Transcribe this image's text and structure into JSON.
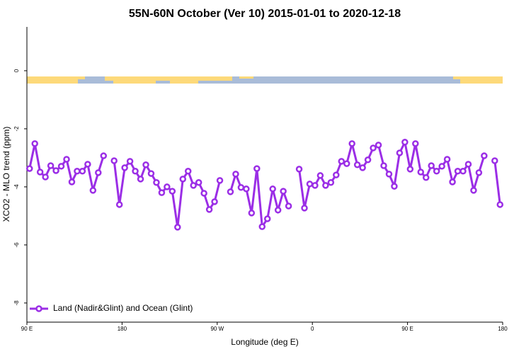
{
  "chart_data": {
    "type": "line",
    "title": "55N-60N October (Ver 10)   2015-01-01 to 2020-12-18",
    "xlabel": "Longitude (deg E)",
    "ylabel": "XCO2 - MLO trend (ppm)",
    "xlim": [
      90,
      540
    ],
    "ylim": [
      -8.66,
      1.51
    ],
    "xticks": [
      {
        "value": 90,
        "label": "90 E"
      },
      {
        "value": 180,
        "label": "180"
      },
      {
        "value": 270,
        "label": "90 W"
      },
      {
        "value": 360,
        "label": "0"
      },
      {
        "value": 450,
        "label": "90 E"
      },
      {
        "value": 540,
        "label": "180"
      }
    ],
    "yticks": [
      0,
      -2,
      -4,
      -6,
      -8
    ],
    "legend": "bottom-left",
    "x": [
      92.5,
      97.5,
      102.5,
      107.5,
      112.5,
      117.5,
      122.5,
      127.5,
      132.5,
      137.5,
      142.5,
      147.5,
      152.5,
      157.5,
      162.5,
      167.5,
      172.5,
      177.5,
      182.5,
      187.5,
      192.5,
      197.5,
      202.5,
      207.5,
      212.5,
      217.5,
      222.5,
      227.5,
      232.5,
      237.5,
      242.5,
      247.5,
      252.5,
      257.5,
      262.5,
      267.5,
      272.5,
      277.5,
      282.5,
      287.5,
      292.5,
      297.5,
      302.5,
      307.5,
      312.5,
      317.5,
      322.5,
      327.5,
      332.5,
      337.5,
      342.5,
      347.5,
      352.5,
      357.5,
      362.5,
      367.5,
      372.5,
      377.5,
      382.5,
      387.5,
      392.5,
      397.5,
      402.5,
      407.5,
      412.5,
      417.5,
      422.5,
      427.5,
      432.5,
      437.5,
      442.5,
      447.5,
      452.5,
      457.5,
      462.5,
      467.5,
      472.5,
      477.5,
      482.5,
      487.5,
      492.5,
      497.5,
      502.5,
      507.5,
      512.5,
      517.5,
      522.5,
      527.5,
      532.5,
      537.5
    ],
    "series": [
      {
        "name": "Land (Nadir&Glint) and Ocean (Glint)",
        "color": "#9b2ee6",
        "values": [
          -3.37,
          -2.51,
          -3.49,
          -3.66,
          -3.27,
          -3.44,
          -3.29,
          -3.05,
          -3.83,
          -3.46,
          -3.46,
          -3.22,
          -4.12,
          -3.51,
          -2.93,
          null,
          -3.1,
          -4.61,
          -3.34,
          -3.12,
          -3.46,
          -3.73,
          -3.24,
          -3.54,
          -3.85,
          -4.2,
          -4.0,
          -4.15,
          -5.39,
          -3.73,
          -3.46,
          -3.95,
          -3.85,
          -4.22,
          -4.78,
          -4.51,
          -3.78,
          null,
          -4.17,
          -3.56,
          -4.02,
          -4.07,
          -4.9,
          -3.37,
          -5.37,
          -5.1,
          -4.07,
          -4.8,
          -4.15,
          -4.66,
          null,
          -3.39,
          -4.73,
          -3.9,
          -3.95,
          -3.61,
          -3.95,
          -3.85,
          -3.59,
          -3.12,
          -3.2,
          -2.51,
          -3.24,
          -3.34,
          -3.07,
          -2.66,
          -2.56,
          -3.27,
          -3.56,
          -3.98,
          -2.83,
          -2.46,
          -3.39,
          -2.51,
          -3.49,
          -3.68,
          -3.27,
          -3.46,
          -3.29,
          -3.05,
          -3.83,
          -3.46,
          -3.46,
          -3.22,
          -4.12,
          -3.51,
          -2.93,
          null,
          -3.1,
          -4.61
        ]
      }
    ]
  }
}
